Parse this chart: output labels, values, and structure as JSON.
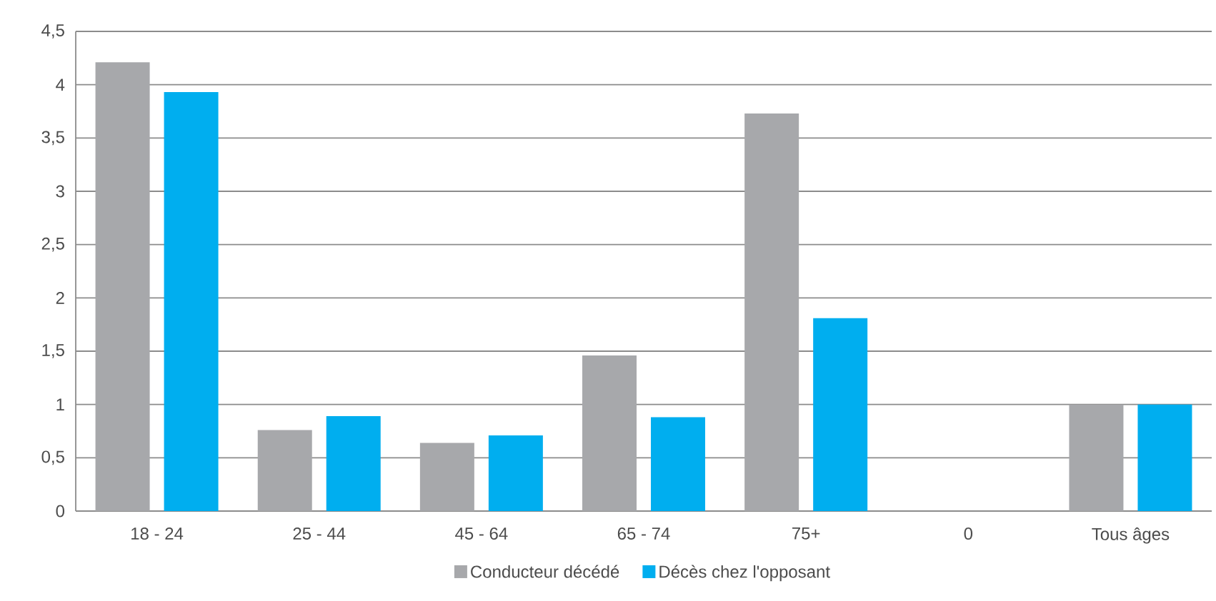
{
  "chart_data": {
    "type": "bar",
    "categories": [
      "18 - 24",
      "25 - 44",
      "45 - 64",
      "65 - 74",
      "75+",
      "0",
      "Tous âges"
    ],
    "series": [
      {
        "name": "Conducteur décédé",
        "color": "#a7a8ab",
        "values": [
          4.21,
          0.76,
          0.64,
          1.46,
          3.73,
          null,
          1.0
        ]
      },
      {
        "name": "Décès chez l'opposant",
        "color": "#00aeef",
        "values": [
          3.93,
          0.89,
          0.71,
          0.88,
          1.81,
          null,
          1.0
        ]
      }
    ],
    "ylim": [
      0,
      4.5
    ],
    "yticks": [
      {
        "value": 0,
        "label": "0"
      },
      {
        "value": 0.5,
        "label": "0,5"
      },
      {
        "value": 1,
        "label": "1"
      },
      {
        "value": 1.5,
        "label": "1,5"
      },
      {
        "value": 2,
        "label": "2"
      },
      {
        "value": 2.5,
        "label": "2,5"
      },
      {
        "value": 3,
        "label": "3"
      },
      {
        "value": 3.5,
        "label": "3,5"
      },
      {
        "value": 4,
        "label": "4"
      },
      {
        "value": 4.5,
        "label": "4,5"
      }
    ],
    "grid": "y",
    "legend": "bottom"
  }
}
